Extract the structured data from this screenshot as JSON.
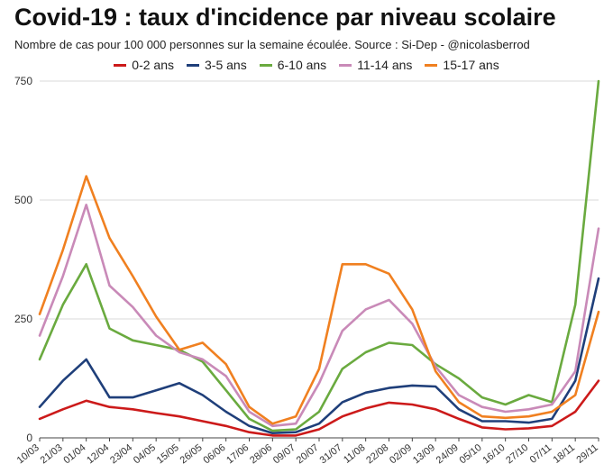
{
  "chart_data": {
    "type": "line",
    "title": "Covid-19 : taux d'incidence par niveau scolaire",
    "subtitle": "Nombre de cas pour 100 000 personnes sur la semaine écoulée. Source : Si-Dep - @nicolasberrod",
    "xlabel": "",
    "ylabel": "",
    "ylim": [
      0,
      750
    ],
    "yticks": [
      0,
      250,
      500,
      750
    ],
    "grid": true,
    "legend_position": "top",
    "x_tick_labels": [
      "10/03",
      "21/03",
      "01/04",
      "12/04",
      "23/04",
      "04/05",
      "15/05",
      "26/05",
      "06/06",
      "17/06",
      "28/06",
      "09/07",
      "20/07",
      "31/07",
      "11/08",
      "22/08",
      "02/09",
      "13/09",
      "24/09",
      "05/10",
      "16/10",
      "27/10",
      "07/11",
      "18/11",
      "29/11"
    ],
    "series": [
      {
        "name": "0-2 ans",
        "color": "#cc1a1a",
        "points": [
          [
            0,
            40
          ],
          [
            1,
            60
          ],
          [
            2,
            78
          ],
          [
            3,
            65
          ],
          [
            4,
            60
          ],
          [
            5,
            52
          ],
          [
            6,
            45
          ],
          [
            7,
            35
          ],
          [
            8,
            25
          ],
          [
            9,
            12
          ],
          [
            10,
            5
          ],
          [
            11,
            5
          ],
          [
            12,
            18
          ],
          [
            13,
            45
          ],
          [
            14,
            62
          ],
          [
            15,
            74
          ],
          [
            16,
            70
          ],
          [
            17,
            60
          ],
          [
            18,
            40
          ],
          [
            19,
            22
          ],
          [
            20,
            18
          ],
          [
            21,
            20
          ],
          [
            22,
            25
          ],
          [
            23,
            55
          ],
          [
            24,
            120
          ]
        ]
      },
      {
        "name": "3-5 ans",
        "color": "#1f3f7a",
        "points": [
          [
            0,
            65
          ],
          [
            1,
            120
          ],
          [
            2,
            165
          ],
          [
            3,
            85
          ],
          [
            4,
            85
          ],
          [
            5,
            100
          ],
          [
            6,
            115
          ],
          [
            7,
            90
          ],
          [
            8,
            55
          ],
          [
            9,
            25
          ],
          [
            10,
            10
          ],
          [
            11,
            12
          ],
          [
            12,
            30
          ],
          [
            13,
            75
          ],
          [
            14,
            95
          ],
          [
            15,
            105
          ],
          [
            16,
            110
          ],
          [
            17,
            108
          ],
          [
            18,
            60
          ],
          [
            19,
            35
          ],
          [
            20,
            35
          ],
          [
            21,
            32
          ],
          [
            22,
            40
          ],
          [
            23,
            120
          ],
          [
            24,
            335
          ]
        ]
      },
      {
        "name": "6-10 ans",
        "color": "#6aaa3f",
        "points": [
          [
            0,
            165
          ],
          [
            1,
            280
          ],
          [
            2,
            365
          ],
          [
            3,
            230
          ],
          [
            4,
            205
          ],
          [
            5,
            195
          ],
          [
            6,
            185
          ],
          [
            7,
            160
          ],
          [
            8,
            100
          ],
          [
            9,
            40
          ],
          [
            10,
            15
          ],
          [
            11,
            18
          ],
          [
            12,
            55
          ],
          [
            13,
            145
          ],
          [
            14,
            180
          ],
          [
            15,
            200
          ],
          [
            16,
            195
          ],
          [
            17,
            155
          ],
          [
            18,
            125
          ],
          [
            19,
            85
          ],
          [
            20,
            70
          ],
          [
            21,
            90
          ],
          [
            22,
            75
          ],
          [
            23,
            280
          ],
          [
            24,
            750
          ]
        ]
      },
      {
        "name": "11-14 ans",
        "color": "#c98ab8",
        "points": [
          [
            0,
            215
          ],
          [
            1,
            340
          ],
          [
            2,
            490
          ],
          [
            3,
            320
          ],
          [
            4,
            275
          ],
          [
            5,
            215
          ],
          [
            6,
            180
          ],
          [
            7,
            165
          ],
          [
            8,
            130
          ],
          [
            9,
            55
          ],
          [
            10,
            25
          ],
          [
            11,
            30
          ],
          [
            12,
            115
          ],
          [
            13,
            225
          ],
          [
            14,
            270
          ],
          [
            15,
            290
          ],
          [
            16,
            240
          ],
          [
            17,
            150
          ],
          [
            18,
            90
          ],
          [
            19,
            65
          ],
          [
            20,
            55
          ],
          [
            21,
            60
          ],
          [
            22,
            70
          ],
          [
            23,
            140
          ],
          [
            24,
            440
          ]
        ]
      },
      {
        "name": "15-17 ans",
        "color": "#f08020",
        "points": [
          [
            0,
            260
          ],
          [
            1,
            395
          ],
          [
            2,
            550
          ],
          [
            3,
            420
          ],
          [
            4,
            340
          ],
          [
            5,
            255
          ],
          [
            6,
            185
          ],
          [
            7,
            200
          ],
          [
            8,
            155
          ],
          [
            9,
            65
          ],
          [
            10,
            30
          ],
          [
            11,
            45
          ],
          [
            12,
            145
          ],
          [
            13,
            365
          ],
          [
            14,
            365
          ],
          [
            15,
            345
          ],
          [
            16,
            270
          ],
          [
            17,
            140
          ],
          [
            18,
            75
          ],
          [
            19,
            45
          ],
          [
            20,
            42
          ],
          [
            21,
            45
          ],
          [
            22,
            55
          ],
          [
            23,
            90
          ],
          [
            24,
            265
          ]
        ]
      }
    ]
  }
}
